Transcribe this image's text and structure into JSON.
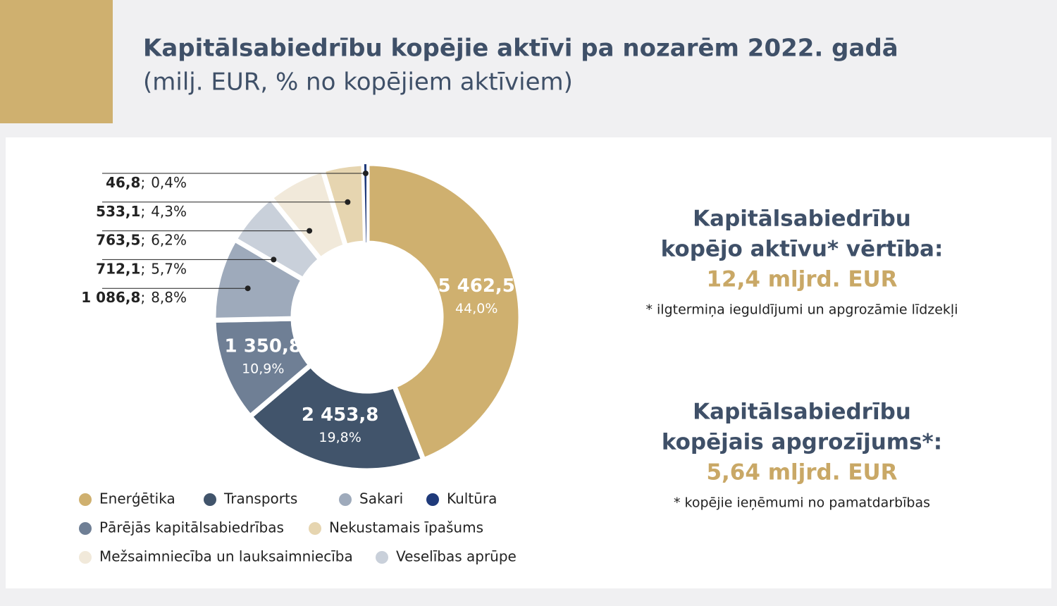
{
  "header": {
    "title": "Kapitālsabiedrību kopējie aktīvi pa nozarēm 2022. gadā",
    "subtitle": "(milj. EUR, % no kopējiem aktīviem)"
  },
  "chart_data": {
    "type": "donut",
    "categories": [
      "Enerģētika",
      "Transports",
      "Pārējās kapitālsabiedrības",
      "Sakari",
      "Veselības aprūpe",
      "Mežsaimniecība un lauksaimniecība",
      "Nekustamais īpašums",
      "Kultūra"
    ],
    "values": [
      5462.5,
      2453.8,
      1350.8,
      1086.8,
      712.1,
      763.5,
      533.1,
      46.8
    ],
    "value_labels": [
      "5 462,5",
      "2 453,8",
      "1 350,8",
      "1 086,8",
      "712,1",
      "763,5",
      "533,1",
      "46,8"
    ],
    "shares": [
      44.0,
      19.8,
      10.9,
      8.8,
      5.7,
      6.2,
      4.3,
      0.4
    ],
    "share_labels": [
      "44,0%",
      "19,8%",
      "10,9%",
      "8,8%",
      "5,7%",
      "6,2%",
      "4,3%",
      "0,4%"
    ],
    "label_separator": ";",
    "colors": [
      "#cfb06f",
      "#41546b",
      "#6f7f95",
      "#9eaabb",
      "#c9d0da",
      "#f1e9da",
      "#e6d5b0",
      "#1f3a7a"
    ]
  },
  "summary": [
    {
      "lines": [
        "Kapitālsabiedrību",
        "kopējo aktīvu* vērtība:"
      ],
      "value": "12,4 mljrd. EUR",
      "note": "* ilgtermiņa ieguldījumi un apgrozāmie līdzekļi"
    },
    {
      "lines": [
        "Kapitālsabiedrību",
        "kopējais apgrozījums*:"
      ],
      "value": "5,64 mljrd. EUR",
      "note": "* kopējie ieņēmumi no pamatdarbības"
    }
  ]
}
